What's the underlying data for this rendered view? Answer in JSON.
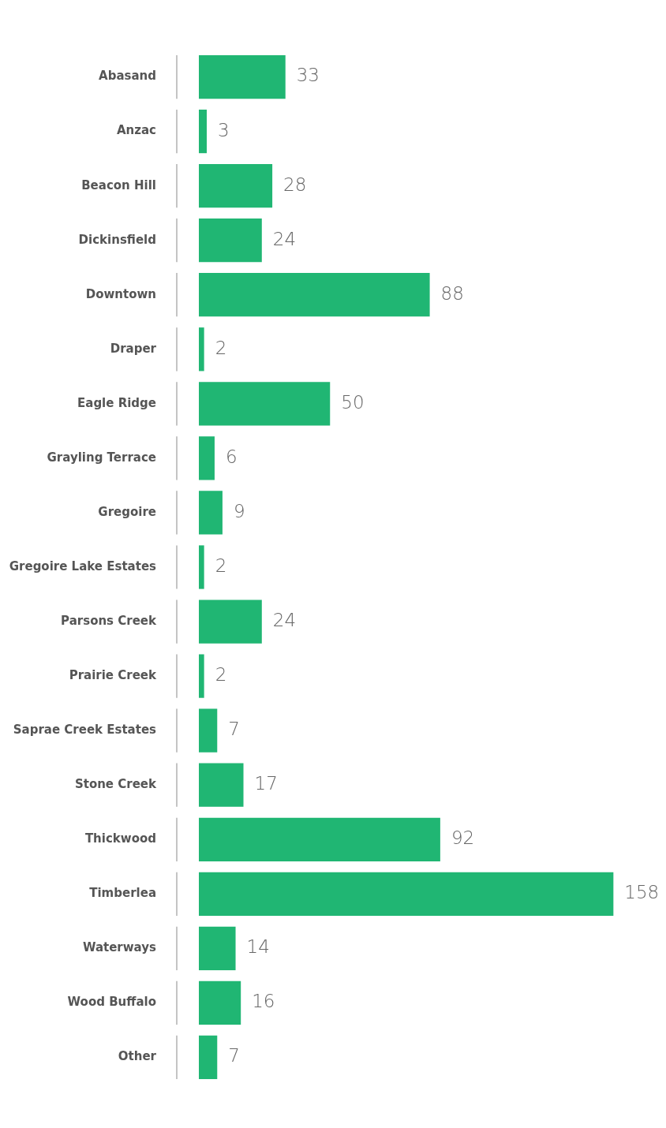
{
  "chart_data": {
    "type": "bar",
    "orientation": "horizontal",
    "categories": [
      "Abasand",
      "Anzac",
      "Beacon Hill",
      "Dickinsfield",
      "Downtown",
      "Draper",
      "Eagle Ridge",
      "Grayling Terrace",
      "Gregoire",
      "Gregoire Lake Estates",
      "Parsons Creek",
      "Prairie Creek",
      "Saprae Creek Estates",
      "Stone Creek",
      "Thickwood",
      "Timberlea",
      "Waterways",
      "Wood Buffalo",
      "Other"
    ],
    "values": [
      33,
      3,
      28,
      24,
      88,
      2,
      50,
      6,
      9,
      2,
      24,
      2,
      7,
      17,
      92,
      158,
      14,
      16,
      7
    ],
    "color": "#20b673",
    "data_labels": true
  }
}
